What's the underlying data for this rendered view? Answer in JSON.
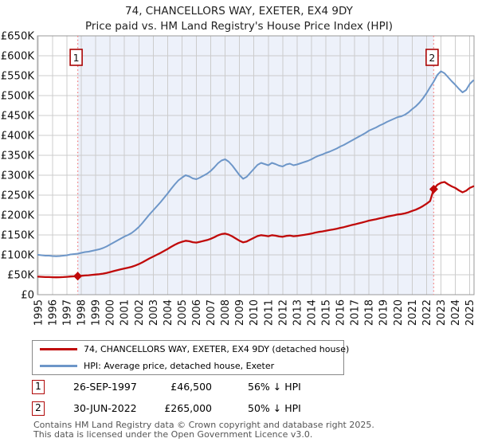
{
  "header": {
    "title": "74, CHANCELLORS WAY, EXETER, EX4 9DY",
    "subtitle": "Price paid vs. HM Land Registry's House Price Index (HPI)"
  },
  "legend": [
    {
      "label": "74, CHANCELLORS WAY, EXETER, EX4 9DY (detached house)",
      "color": "#c00a0a"
    },
    {
      "label": "HPI: Average price, detached house, Exeter",
      "color": "#6d96c8"
    }
  ],
  "transactions": [
    {
      "num": "1",
      "date": "26-SEP-1997",
      "price": "£46,500",
      "hpi_diff": "56% ↓ HPI"
    },
    {
      "num": "2",
      "date": "30-JUN-2022",
      "price": "£265,000",
      "hpi_diff": "50% ↓ HPI"
    }
  ],
  "footer": {
    "line1": "Contains HM Land Registry data © Crown copyright and database right 2025.",
    "line2": "This data is licensed under the Open Government Licence v3.0."
  },
  "chart_data": {
    "type": "line",
    "title": "74, CHANCELLORS WAY, EXETER, EX4 9DY",
    "subtitle": "Price paid vs. HM Land Registry's House Price Index (HPI)",
    "units": "GBP thousands",
    "x_unit": "year",
    "x_start": 1995.0,
    "x_step": 0.25,
    "xlim": [
      1994.95,
      2025.3
    ],
    "ylim": [
      0,
      650
    ],
    "grid": true,
    "legend_position": "bottom",
    "x_ticks": [
      1995,
      1996,
      1997,
      1998,
      1999,
      2000,
      2001,
      2002,
      2003,
      2004,
      2005,
      2006,
      2007,
      2008,
      2009,
      2010,
      2011,
      2012,
      2013,
      2014,
      2015,
      2016,
      2017,
      2018,
      2019,
      2020,
      2021,
      2022,
      2023,
      2024,
      2025
    ],
    "y_ticks": [
      {
        "value": 0,
        "label": "£0"
      },
      {
        "value": 50,
        "label": "£50K"
      },
      {
        "value": 100,
        "label": "£100K"
      },
      {
        "value": 150,
        "label": "£150K"
      },
      {
        "value": 200,
        "label": "£200K"
      },
      {
        "value": 250,
        "label": "£250K"
      },
      {
        "value": 300,
        "label": "£300K"
      },
      {
        "value": 350,
        "label": "£350K"
      },
      {
        "value": 400,
        "label": "£400K"
      },
      {
        "value": 450,
        "label": "£450K"
      },
      {
        "value": 500,
        "label": "£500K"
      },
      {
        "value": 550,
        "label": "£550K"
      },
      {
        "value": 600,
        "label": "£600K"
      },
      {
        "value": 650,
        "label": "£650K"
      }
    ],
    "series": [
      {
        "name": "74, CHANCELLORS WAY, EXETER, EX4 9DY (detached house)",
        "color": "#c00a0a",
        "width": 2.3,
        "values": [
          45.1,
          44.7,
          44.2,
          44.2,
          43.8,
          43.6,
          43.8,
          44.2,
          44.7,
          45.6,
          46.0,
          46.5,
          47.4,
          48.3,
          48.8,
          49.7,
          50.6,
          51.5,
          52.8,
          54.6,
          56.9,
          59.1,
          61.4,
          63.7,
          65.9,
          67.7,
          70.0,
          73.1,
          76.7,
          81.3,
          86.2,
          91.2,
          95.7,
          100.2,
          104.7,
          109.7,
          114.7,
          120.1,
          125.1,
          129.6,
          132.7,
          135.4,
          134.1,
          131.8,
          130.9,
          132.7,
          135.0,
          137.2,
          140.4,
          144.5,
          149.0,
          152.1,
          153.5,
          150.8,
          146.3,
          140.9,
          135.4,
          131.4,
          133.6,
          138.1,
          142.7,
          147.2,
          149.4,
          148.1,
          146.7,
          149.4,
          148.1,
          146.3,
          145.4,
          147.6,
          148.5,
          146.7,
          147.6,
          149.0,
          150.3,
          151.7,
          153.5,
          155.7,
          157.6,
          158.9,
          160.7,
          162.1,
          163.9,
          165.7,
          167.9,
          169.7,
          172.0,
          174.3,
          176.5,
          178.8,
          181.0,
          183.3,
          186.0,
          187.8,
          189.6,
          191.9,
          193.7,
          195.9,
          197.7,
          199.5,
          201.4,
          202.3,
          204.1,
          206.8,
          210.4,
          213.5,
          217.6,
          222.6,
          228.4,
          235.2,
          265.0,
          276.0,
          281.0,
          283.0,
          277.0,
          272.0,
          268.0,
          262.0,
          257.0,
          261.0,
          268.0,
          272.0
        ]
      },
      {
        "name": "HPI: Average price, detached house, Exeter",
        "color": "#6d96c8",
        "width": 2.0,
        "values": [
          100,
          99,
          98,
          98,
          97,
          96.5,
          97,
          98,
          99,
          101,
          102,
          103,
          105,
          107,
          108,
          110,
          112,
          114,
          117,
          121,
          126,
          131,
          136,
          141,
          146,
          150,
          155,
          162,
          170,
          180,
          191,
          202,
          212,
          222,
          232,
          243,
          254,
          266,
          277,
          287,
          294,
          300,
          297,
          292,
          290,
          294,
          299,
          304,
          311,
          320,
          330,
          337,
          340,
          334,
          324,
          312,
          300,
          291,
          296,
          306,
          316,
          326,
          331,
          328,
          325,
          331,
          328,
          324,
          322,
          327,
          329,
          325,
          327,
          330,
          333,
          336,
          340,
          345,
          349,
          352,
          356,
          359,
          363,
          367,
          372,
          376,
          381,
          386,
          391,
          396,
          401,
          406,
          412,
          416,
          420,
          425,
          429,
          434,
          438,
          442,
          446,
          448,
          452,
          458,
          466,
          473,
          482,
          493,
          506,
          521,
          535,
          552,
          561,
          556,
          546,
          536,
          527,
          517,
          508,
          514,
          529,
          538
        ]
      }
    ],
    "annotations": [
      {
        "label": "1",
        "x": 1997.75,
        "y": 46.5
      },
      {
        "label": "2",
        "x": 2022.5,
        "y": 265
      }
    ],
    "band": {
      "from": 1997.75,
      "to": 2022.5,
      "color": "#edf1fa"
    },
    "colors": {
      "grid": "#cccccc",
      "border": "#999999",
      "sale_vline": "#f47c7c",
      "annotation_border": "#aa0505",
      "marker": "#c00a0a"
    }
  }
}
